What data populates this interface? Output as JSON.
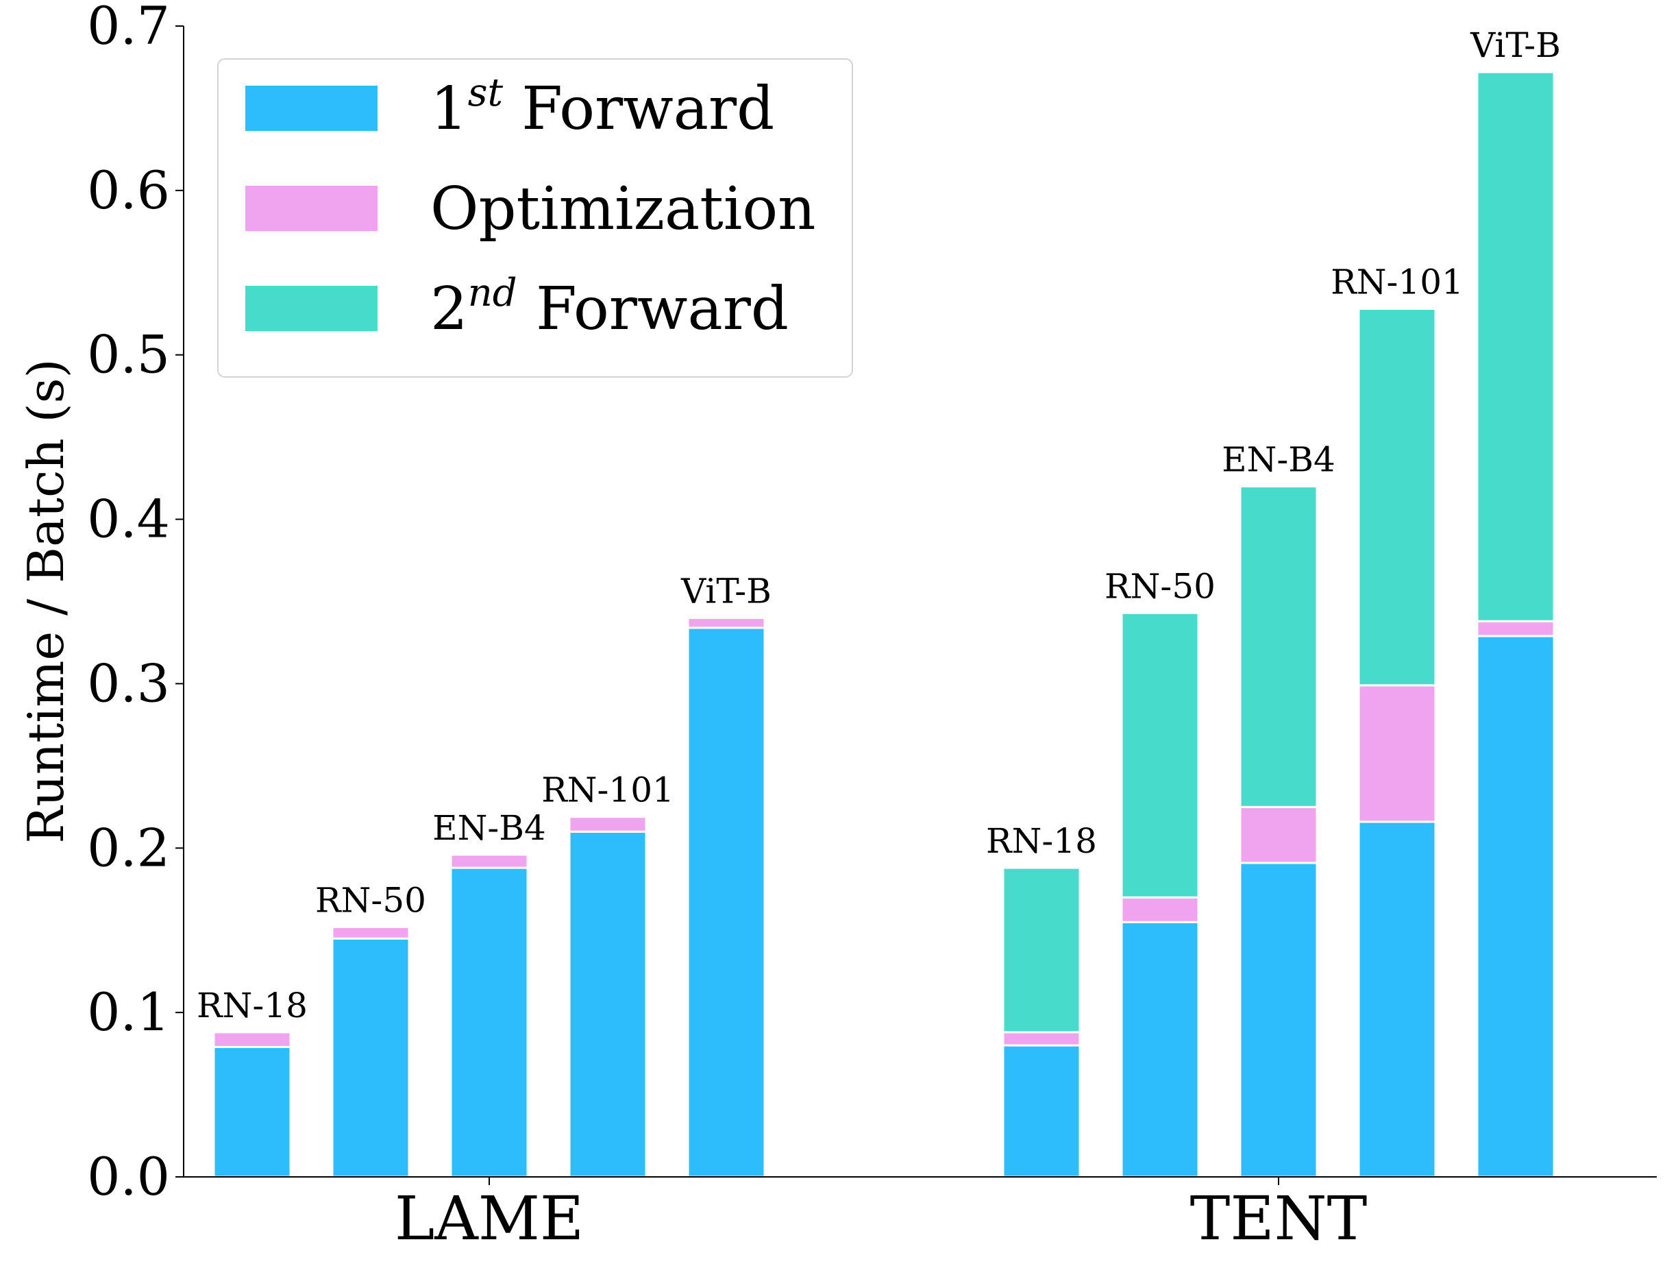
{
  "chart_data": {
    "type": "bar",
    "stacked": true,
    "ylabel": "Runtime / Batch (s)",
    "xlabel": "",
    "ylim": [
      0,
      0.7
    ],
    "yticks": [
      "0.0",
      "0.1",
      "0.2",
      "0.3",
      "0.4",
      "0.5",
      "0.6",
      "0.7"
    ],
    "groups": [
      "LAME",
      "TENT"
    ],
    "models": [
      "RN-18",
      "RN-50",
      "EN-B4",
      "RN-101",
      "ViT-B"
    ],
    "legend_position": "top-left",
    "series": [
      {
        "name_base": "1",
        "name_sup": "st",
        "name_rest": " Forward",
        "color": "#2dbcfc",
        "values": [
          [
            0.079,
            0.145,
            0.188,
            0.21,
            0.334
          ],
          [
            0.08,
            0.155,
            0.191,
            0.216,
            0.329
          ]
        ]
      },
      {
        "name_base": "Optimization",
        "name_sup": "",
        "name_rest": "",
        "color": "#f0a3ef",
        "values": [
          [
            0.009,
            0.007,
            0.008,
            0.009,
            0.006
          ],
          [
            0.008,
            0.015,
            0.034,
            0.083,
            0.009
          ]
        ]
      },
      {
        "name_base": "2",
        "name_sup": "nd",
        "name_rest": " Forward",
        "color": "#47dbcc",
        "values": [
          [
            0,
            0,
            0,
            0,
            0
          ],
          [
            0.1,
            0.173,
            0.195,
            0.229,
            0.334
          ]
        ]
      }
    ]
  }
}
